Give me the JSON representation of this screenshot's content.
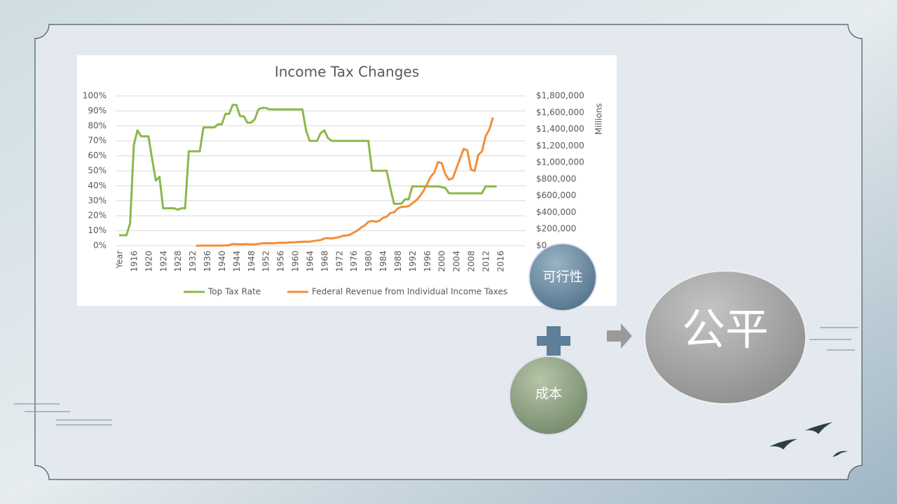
{
  "chart_data": {
    "type": "line",
    "title": "Income Tax Changes",
    "y2label": "Millions",
    "categories": [
      "Year",
      null,
      null,
      null,
      1916,
      null,
      null,
      null,
      1920,
      null,
      null,
      null,
      1924,
      null,
      null,
      null,
      1928,
      null,
      null,
      null,
      1932,
      null,
      null,
      null,
      1936,
      null,
      null,
      null,
      1940,
      null,
      null,
      null,
      1944,
      null,
      null,
      null,
      1948,
      null,
      null,
      null,
      1952,
      null,
      null,
      null,
      1956,
      null,
      null,
      null,
      1960,
      null,
      null,
      null,
      1964,
      null,
      null,
      null,
      1968,
      null,
      null,
      null,
      1972,
      null,
      null,
      null,
      1976,
      null,
      null,
      null,
      1980,
      null,
      null,
      null,
      1984,
      null,
      null,
      null,
      1988,
      null,
      null,
      null,
      1992,
      null,
      null,
      null,
      1996,
      null,
      null,
      null,
      2000,
      null,
      null,
      null,
      2004,
      null,
      null,
      null,
      2008,
      null,
      null,
      null,
      2012,
      null,
      null,
      null,
      2016
    ],
    "series": [
      {
        "name": "Top Tax Rate",
        "color": "#8cb84a",
        "values": [
          7,
          7,
          7,
          15,
          67,
          77,
          73,
          73,
          73,
          58,
          43.5,
          46,
          25,
          25,
          25,
          25,
          24,
          25,
          25,
          63,
          63,
          63,
          63,
          79,
          79,
          79,
          79,
          81.1,
          81,
          88,
          88,
          94,
          94,
          86.45,
          86.45,
          82.13,
          82.13,
          84.36,
          91,
          92,
          92,
          91,
          91,
          91,
          91,
          91,
          91,
          91,
          91,
          91,
          91,
          77,
          70,
          70,
          70,
          75.25,
          77,
          71.75,
          70,
          70,
          70,
          70,
          70,
          70,
          70,
          70,
          70,
          70,
          70,
          50,
          50,
          50,
          50,
          50,
          38.5,
          28,
          28,
          28,
          31,
          31,
          39.6,
          39.6,
          39.6,
          39.6,
          39.6,
          39.6,
          39.6,
          39.6,
          39.1,
          38.6,
          35,
          35,
          35,
          35,
          35,
          35,
          35,
          35,
          35,
          35,
          39.6,
          39.6,
          39.6,
          39.6,
          null
        ]
      },
      {
        "name": "Federal Revenue from Individual Income Taxes",
        "color": "#f28e3c",
        "axis": "y2",
        "values": [
          null,
          null,
          null,
          null,
          null,
          null,
          null,
          null,
          null,
          null,
          null,
          null,
          null,
          null,
          null,
          null,
          null,
          null,
          null,
          null,
          null,
          420,
          527,
          674,
          1092,
          1286,
          1029,
          892,
          1314,
          3263,
          6505,
          19705,
          18372,
          16098,
          17935,
          19315,
          15552,
          15755,
          21616,
          27934,
          29816,
          29542,
          28747,
          32188,
          35620,
          34724,
          36719,
          40715,
          41338,
          45571,
          47588,
          48697,
          48792,
          55446,
          61526,
          68726,
          87249,
          90412,
          86230,
          94737,
          103246,
          118952,
          122386,
          131603,
          157626,
          180988,
          217841,
          244069,
          285917,
          297744,
          288938,
          298415,
          334531,
          348959,
          392557,
          401181,
          445690,
          466884,
          467827,
          475964,
          509680,
          543055,
          590244,
          656417,
          737466,
          828586,
          879480,
          1004462,
          994339,
          858345,
          793699,
          808959,
          927222,
          1043908,
          1163472,
          1145747,
          915308,
          898549,
          1091473,
          1132206,
          1316405,
          1394568,
          1540802,
          null,
          null
        ]
      }
    ],
    "ylim": [
      0,
      100
    ],
    "yticks": [
      {
        "value": 0,
        "label": "0%"
      },
      {
        "value": 10,
        "label": "10%"
      },
      {
        "value": 20,
        "label": "20%"
      },
      {
        "value": 30,
        "label": "30%"
      },
      {
        "value": 40,
        "label": "40%"
      },
      {
        "value": 50,
        "label": "50%"
      },
      {
        "value": 60,
        "label": "60%"
      },
      {
        "value": 70,
        "label": "70%"
      },
      {
        "value": 80,
        "label": "80%"
      },
      {
        "value": 90,
        "label": "90%"
      },
      {
        "value": 100,
        "label": "100%"
      }
    ],
    "y2lim": [
      0,
      1800000
    ],
    "y2ticks": [
      {
        "value": 0,
        "label": "$0"
      },
      {
        "value": 200000,
        "label": "$200,000"
      },
      {
        "value": 400000,
        "label": "$400,000"
      },
      {
        "value": 600000,
        "label": "$600,000"
      },
      {
        "value": 800000,
        "label": "$800,000"
      },
      {
        "value": 1000000,
        "label": "$1,000,000"
      },
      {
        "value": 1200000,
        "label": "$1,200,000"
      },
      {
        "value": 1400000,
        "label": "$1,400,000"
      },
      {
        "value": 1600000,
        "label": "$1,600,000"
      },
      {
        "value": 1800000,
        "label": "$1,800,000"
      }
    ],
    "grid": true,
    "legend": "bottom"
  },
  "diagram": {
    "nodes": [
      {
        "label": "可行性"
      },
      {
        "label": "成本"
      },
      {
        "label": "公平"
      }
    ]
  }
}
